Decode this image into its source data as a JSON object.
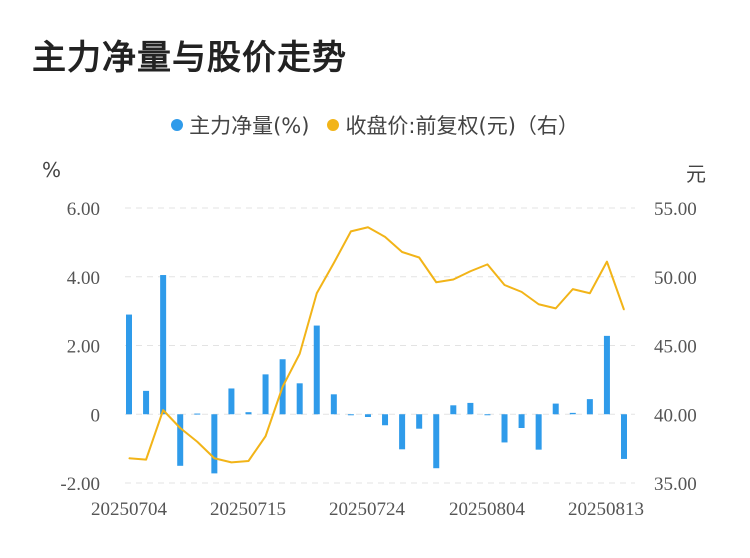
{
  "title": "主力净量与股价走势",
  "legend": {
    "net": "主力净量(%)",
    "price": "收盘价:前复权(元)（右）"
  },
  "units": {
    "left": "%",
    "right": "元"
  },
  "colors": {
    "bar": "#2f9bea",
    "line": "#f2b418",
    "grid": "#e3e3e3"
  },
  "chart_data": {
    "type": "bar+line",
    "x_ticks": [
      "20250704",
      "20250715",
      "20250724",
      "20250804",
      "20250813"
    ],
    "left_axis": {
      "ticks": [
        "6.00",
        "4.00",
        "2.00",
        "0",
        "-2.00"
      ],
      "range": [
        -2,
        6
      ]
    },
    "right_axis": {
      "ticks": [
        "55.00",
        "50.00",
        "45.00",
        "40.00",
        "35.00"
      ],
      "range": [
        35,
        55
      ]
    },
    "series": [
      {
        "name": "主力净量(%)",
        "type": "bar",
        "values": [
          2.9,
          0.68,
          4.05,
          -1.5,
          0.02,
          -1.72,
          0.75,
          0.06,
          1.16,
          1.6,
          0.9,
          2.58,
          0.58,
          -0.03,
          -0.08,
          -0.32,
          -1.02,
          -0.42,
          -1.57,
          0.26,
          0.33,
          -0.02,
          -0.82,
          -0.4,
          -1.03,
          0.31,
          0.04,
          0.44,
          2.28,
          -1.3
        ]
      },
      {
        "name": "收盘价:前复权(元)（右）",
        "type": "line",
        "values": [
          36.8,
          36.7,
          40.3,
          39.0,
          38.0,
          36.8,
          36.5,
          36.6,
          38.4,
          42.0,
          44.4,
          48.8,
          51.0,
          53.3,
          53.6,
          52.9,
          51.8,
          51.4,
          49.6,
          49.8,
          50.4,
          50.9,
          49.4,
          48.9,
          48.0,
          47.7,
          49.1,
          48.8,
          51.1,
          47.6
        ]
      }
    ]
  }
}
